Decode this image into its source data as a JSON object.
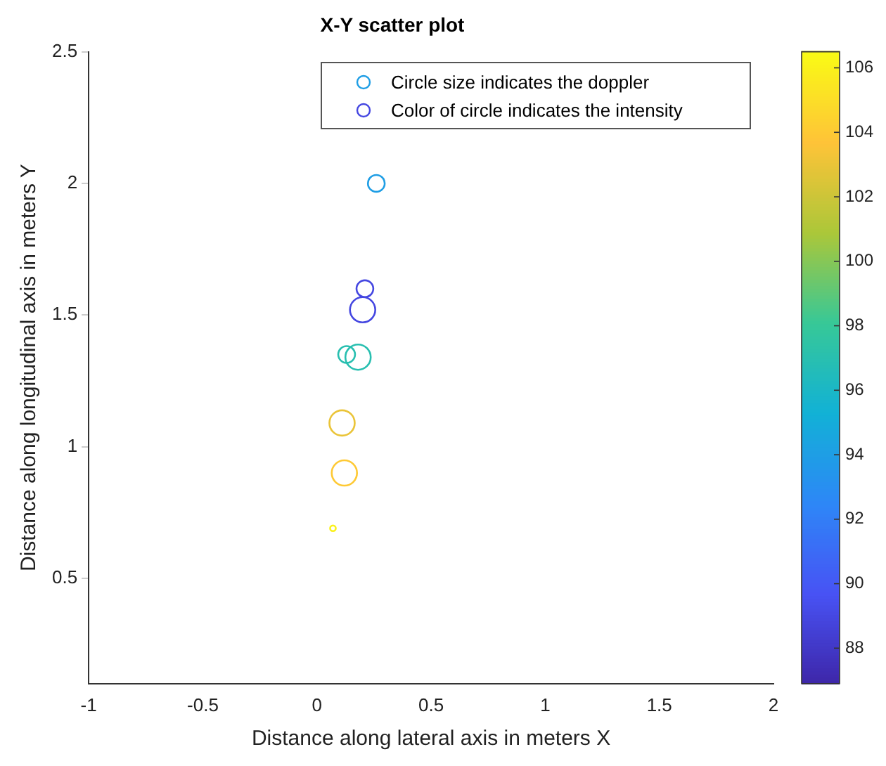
{
  "chart_data": {
    "type": "bubble",
    "title": "X-Y scatter plot",
    "xlabel": "Distance along lateral axis in meters X",
    "ylabel": "Distance along longitudinal axis in meters Y",
    "x": [
      0.26,
      0.21,
      0.2,
      0.13,
      0.18,
      0.11,
      0.12,
      0.07
    ],
    "values": [
      2.0,
      1.6,
      1.52,
      1.35,
      1.34,
      1.09,
      0.9,
      0.69
    ],
    "sizes": [
      0.44,
      0.44,
      1,
      0.44,
      1,
      1,
      1,
      0.05
    ],
    "cvalues": [
      94,
      89,
      89,
      97,
      97,
      103,
      104,
      106
    ],
    "clim": [
      86.9,
      106.5
    ],
    "cticks": [
      88,
      90,
      92,
      94,
      96,
      98,
      100,
      102,
      104,
      106
    ],
    "xlim": [
      -1,
      2
    ],
    "xticks": [
      -1,
      -0.5,
      0,
      0.5,
      1,
      1.5,
      2
    ],
    "ylim": [
      0.1,
      2.5
    ],
    "yticks": [
      0.5,
      1,
      1.5,
      2,
      2.5
    ],
    "annotations": [
      "Circle size indicates the doppler",
      "Color of circle indicates the intensity"
    ],
    "grid": false,
    "marker": "circle"
  }
}
